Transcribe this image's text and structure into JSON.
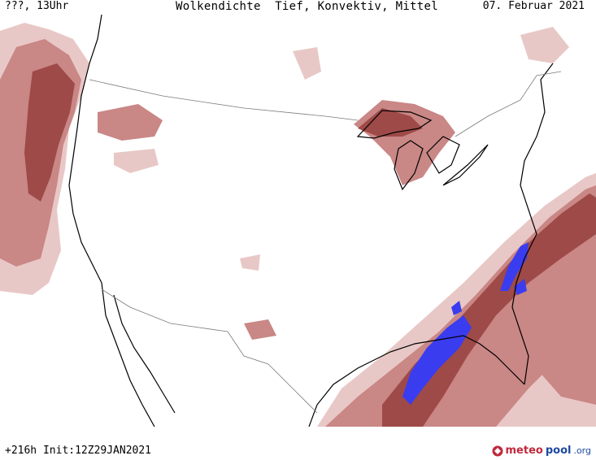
{
  "header": {
    "valid_time": "???, 13Uhr",
    "title": "Wolkendichte  Tief, Konvektiv, Mittel",
    "date": "07. Februar 2021"
  },
  "footer": {
    "forecast_info": "+216h  Init:12Z29JAN2021",
    "logo_part1": "meteo",
    "logo_part2": "pool",
    "logo_suffix": ".org"
  },
  "colors": {
    "cloud_light": "#e8c8c6",
    "cloud_mid": "#c98785",
    "cloud_dark": "#9e4a48",
    "convective": "#3a3cf0",
    "coastline": "#000000",
    "border": "#7a7a7a",
    "logo_red": "#c0293d",
    "logo_blue": "#1d4aa0"
  }
}
